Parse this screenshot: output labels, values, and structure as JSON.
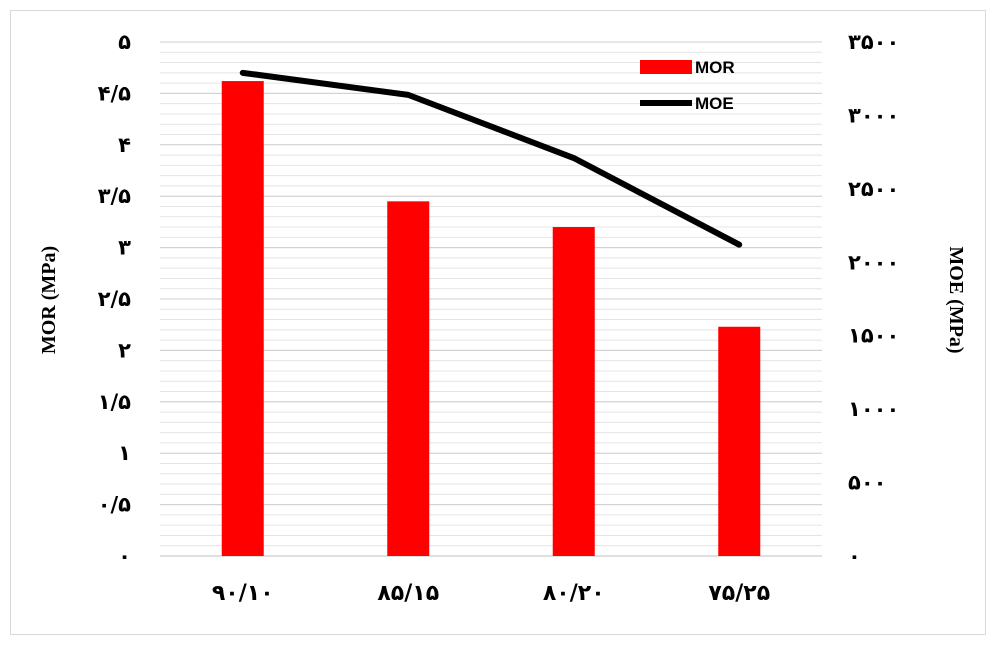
{
  "chart_data": {
    "type": "bar",
    "categories": [
      "۹۰/۱۰",
      "۸۵/۱۵",
      "۸۰/۲۰",
      "۷۵/۲۵"
    ],
    "series": [
      {
        "name": "MOR",
        "type": "bar",
        "axis": "left",
        "color": "#ff0000",
        "values": [
          4.62,
          3.45,
          3.2,
          2.23
        ]
      },
      {
        "name": "MOE",
        "type": "line",
        "axis": "right",
        "color": "#000000",
        "values": [
          3290,
          3140,
          2710,
          2120
        ]
      }
    ],
    "ylabel": "MOR (MPa)",
    "y2label": "MOE (MPa)",
    "ylim": [
      0,
      5
    ],
    "y2lim": [
      0,
      3500
    ],
    "yticks": [
      {
        "value": 0,
        "label": "۰"
      },
      {
        "value": 0.5,
        "label": "۰/۵"
      },
      {
        "value": 1,
        "label": "۱"
      },
      {
        "value": 1.5,
        "label": "۱/۵"
      },
      {
        "value": 2,
        "label": "۲"
      },
      {
        "value": 2.5,
        "label": "۲/۵"
      },
      {
        "value": 3,
        "label": "۳"
      },
      {
        "value": 3.5,
        "label": "۳/۵"
      },
      {
        "value": 4,
        "label": "۴"
      },
      {
        "value": 4.5,
        "label": "۴/۵"
      },
      {
        "value": 5,
        "label": "۵"
      }
    ],
    "y2ticks": [
      {
        "value": 0,
        "label": "۰"
      },
      {
        "value": 500,
        "label": "۵۰۰"
      },
      {
        "value": 1000,
        "label": "۱۰۰۰"
      },
      {
        "value": 1500,
        "label": "۱۵۰۰"
      },
      {
        "value": 2000,
        "label": "۲۰۰۰"
      },
      {
        "value": 2500,
        "label": "۲۵۰۰"
      },
      {
        "value": 3000,
        "label": "۳۰۰۰"
      },
      {
        "value": 3500,
        "label": "۳۵۰۰"
      }
    ],
    "grid": true,
    "legend_position": "top-right"
  }
}
